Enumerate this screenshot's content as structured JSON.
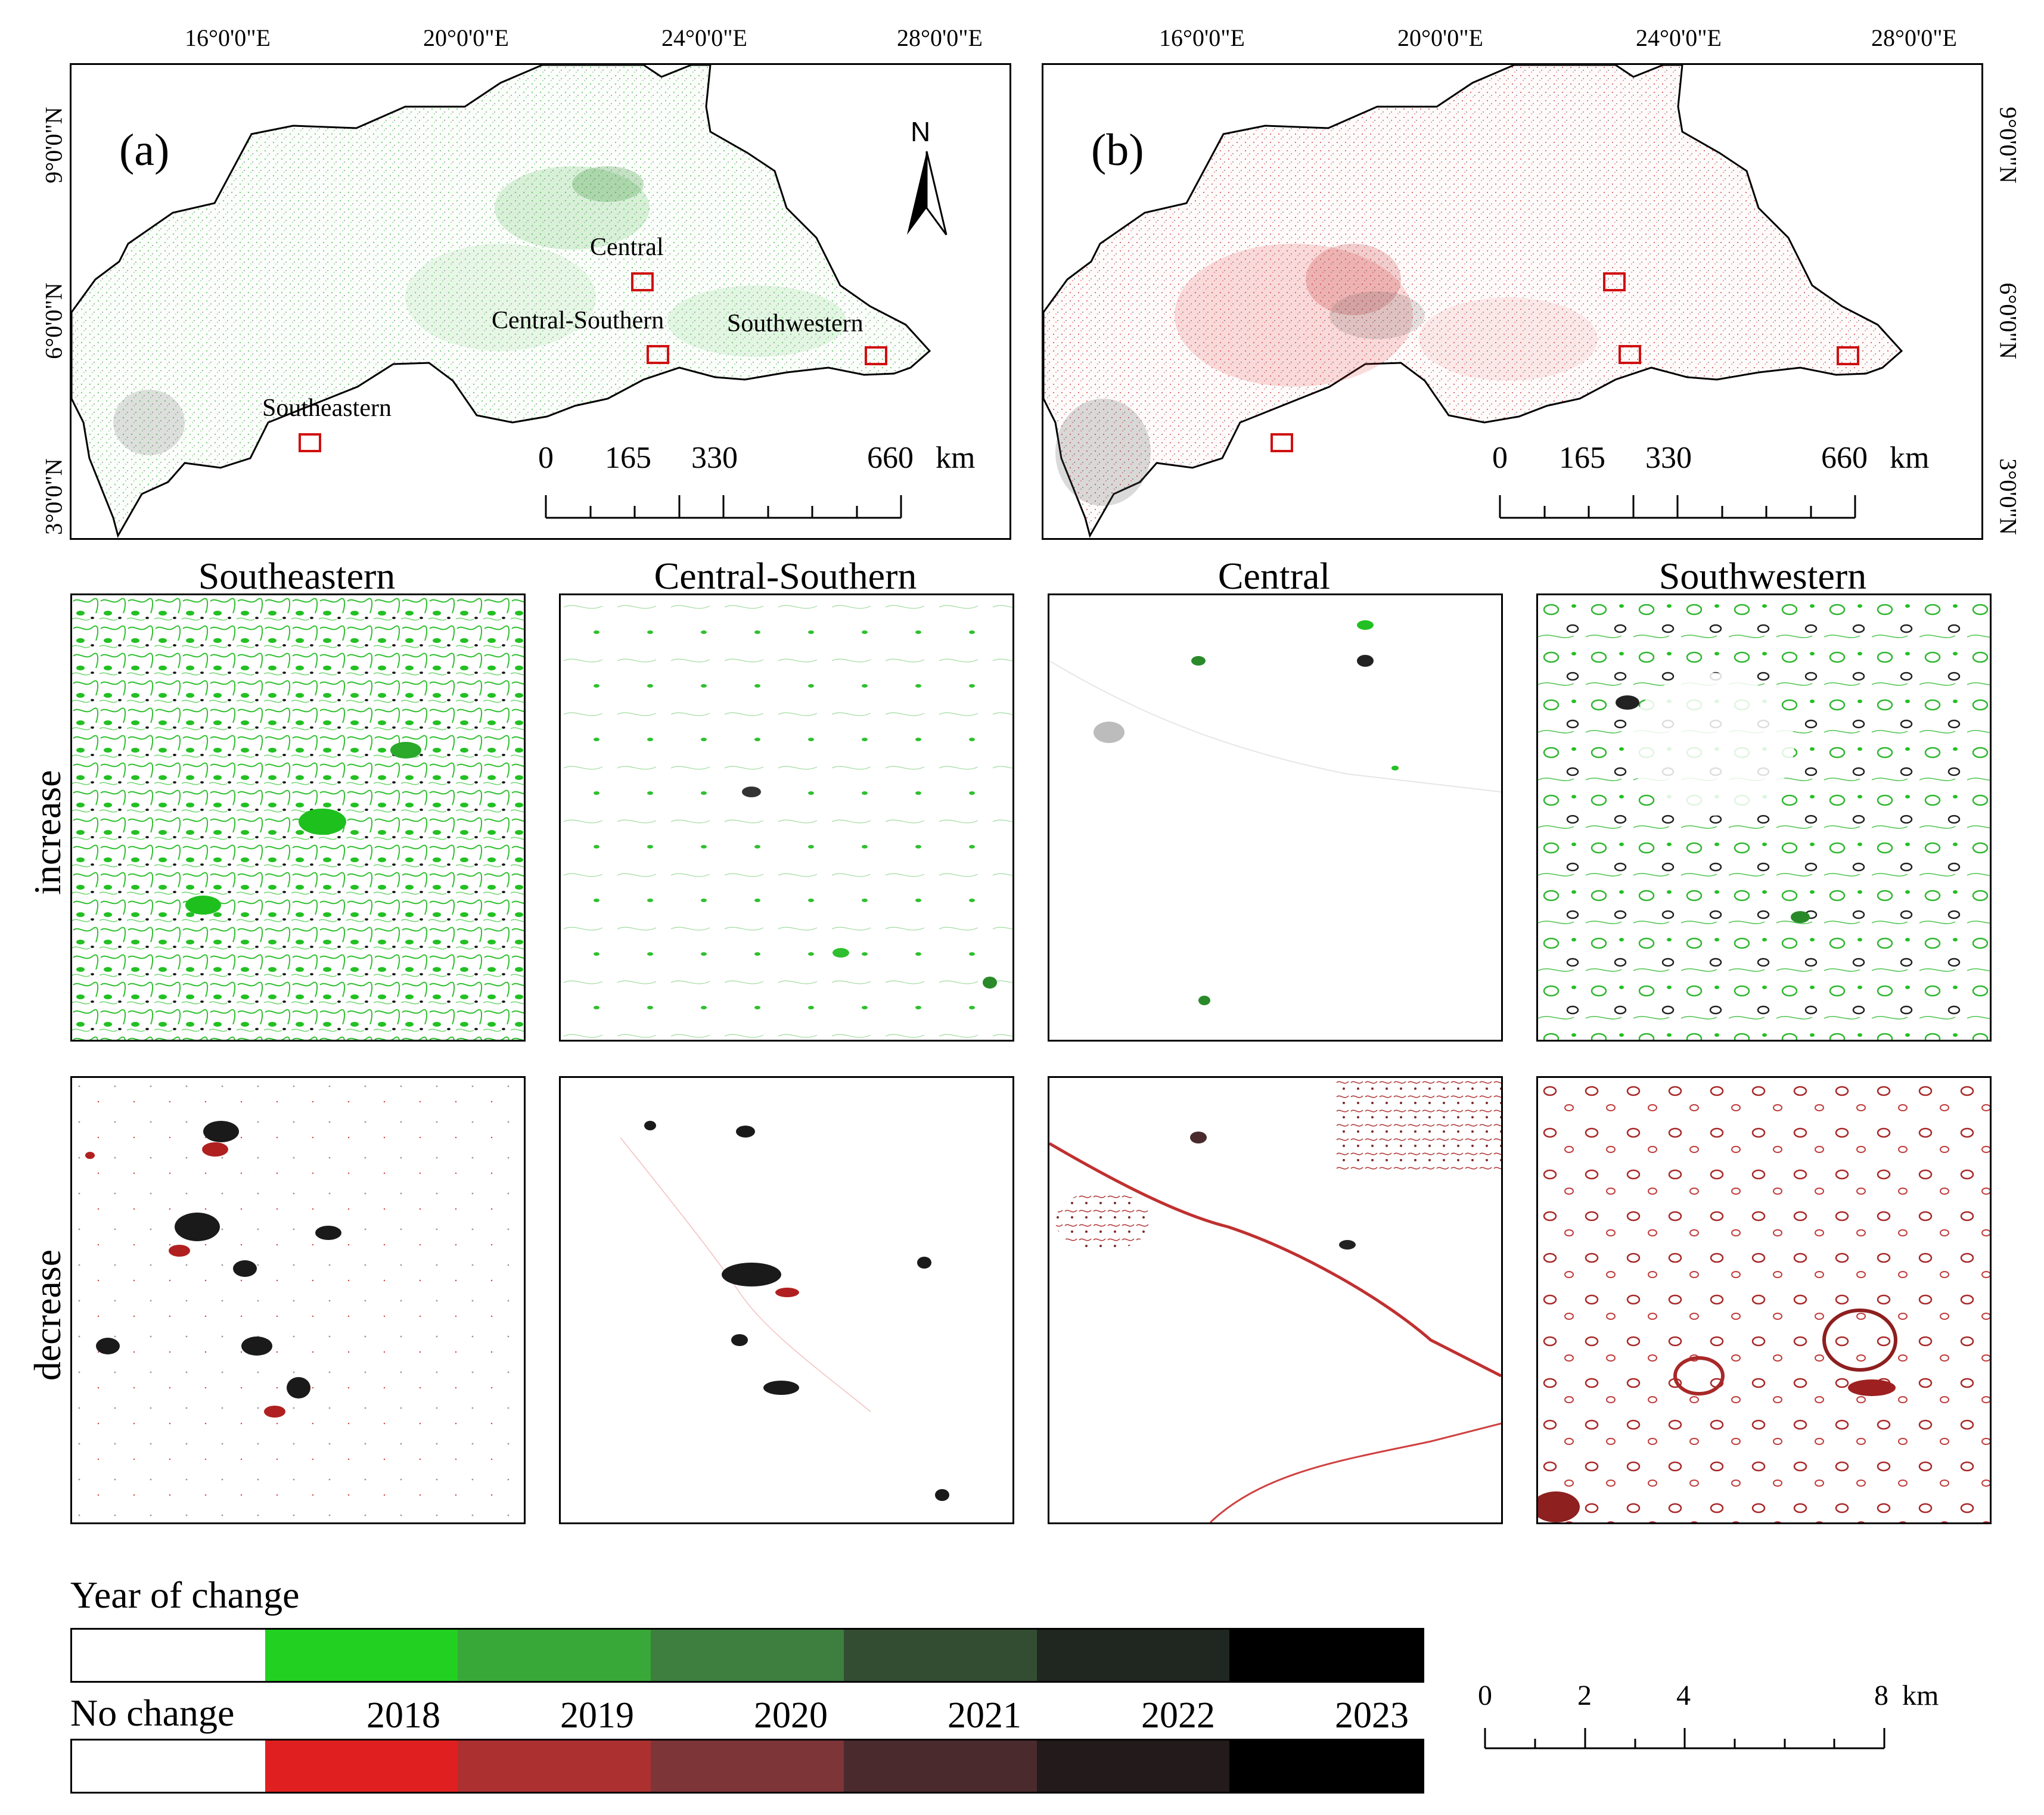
{
  "panel_a": {
    "label": "(a)",
    "north": "N",
    "region_labels": {
      "central": "Central",
      "central_southern": "Central-Southern",
      "southwestern": "Southwestern",
      "southeastern": "Southeastern"
    },
    "scale": {
      "t0": "0",
      "t1": "165",
      "t2": "330",
      "t3": "660",
      "unit": "km"
    }
  },
  "panel_b": {
    "label": "(b)",
    "scale": {
      "t0": "0",
      "t1": "165",
      "t2": "330",
      "t3": "660",
      "unit": "km"
    }
  },
  "lon_labels": [
    "16°0'0\"E",
    "20°0'0\"E",
    "24°0'0\"E",
    "28°0'0\"E"
  ],
  "lat_labels": [
    "9°0'0\"N",
    "6°0'0\"N",
    "3°0'0\"N"
  ],
  "column_titles": [
    "Southeastern",
    "Central-Southern",
    "Central",
    "Southwestern"
  ],
  "row_labels": [
    "increase",
    "decrease"
  ],
  "legend": {
    "title": "Year of change",
    "no_change": "No change",
    "years": [
      "2018",
      "2019",
      "2020",
      "2021",
      "2022",
      "2023"
    ],
    "increase_colors": [
      "#ffffff",
      "#22d022",
      "#38a838",
      "#3e7e3e",
      "#334d33",
      "#202620",
      "#000000"
    ],
    "decrease_colors": [
      "#ffffff",
      "#e02020",
      "#ad3030",
      "#7d3538",
      "#4a2a2d",
      "#221a1b",
      "#000000"
    ]
  },
  "scale_small": {
    "t0": "0",
    "t1": "2",
    "t2": "4",
    "t3": "8",
    "unit": "km"
  }
}
